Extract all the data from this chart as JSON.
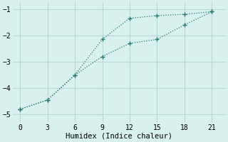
{
  "line1_x": [
    0,
    3,
    6,
    9,
    12,
    15,
    18,
    21
  ],
  "line1_y": [
    -4.8,
    -4.45,
    -3.5,
    -2.15,
    -1.35,
    -1.25,
    -1.2,
    -1.1
  ],
  "line2_x": [
    0,
    3,
    6,
    9,
    12,
    15,
    18,
    21
  ],
  "line2_y": [
    -4.8,
    -4.45,
    -3.5,
    -2.8,
    -2.3,
    -2.15,
    -1.6,
    -1.1
  ],
  "line_color": "#2a7d72",
  "bg_color": "#d8f0ee",
  "grid_color": "#b8d8d4",
  "xlabel": "Humidex (Indice chaleur)",
  "ylim": [
    -5.3,
    -0.75
  ],
  "xlim": [
    -0.8,
    22.5
  ],
  "yticks": [
    -5,
    -4,
    -3,
    -2,
    -1
  ],
  "xticks": [
    0,
    3,
    6,
    9,
    12,
    15,
    18,
    21
  ]
}
